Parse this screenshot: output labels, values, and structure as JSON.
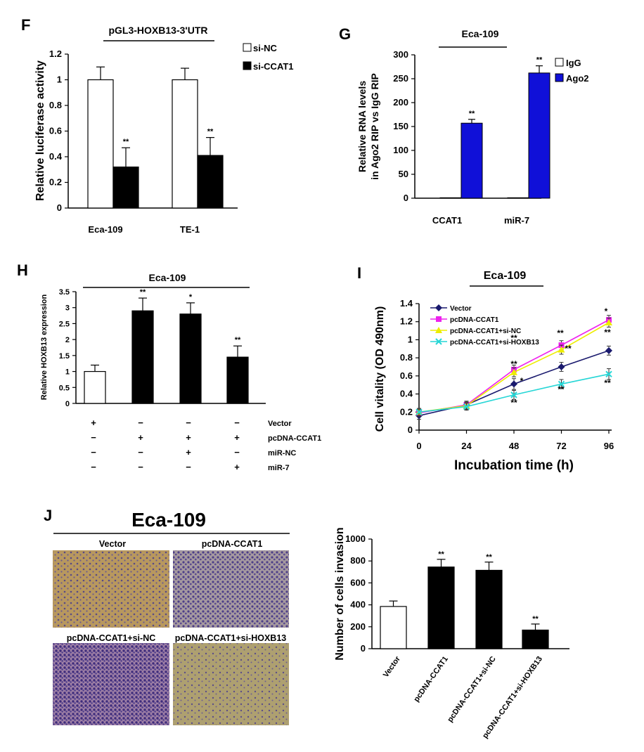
{
  "chart_data": [
    {
      "panel": "F",
      "type": "bar",
      "title": "pGL3-HOXB13-3'UTR",
      "ylabel": "Relative luciferase activity",
      "ylim": [
        0,
        1.2
      ],
      "yticks": [
        "0",
        "0.2",
        "0.4",
        "0.6",
        "0.8",
        "1",
        "1.2"
      ],
      "categories": [
        "Eca-109",
        "TE-1"
      ],
      "series": [
        {
          "name": "si-NC",
          "color": "#ffffff",
          "values": [
            1.0,
            1.0
          ],
          "errors": [
            0.1,
            0.09
          ],
          "marks": [
            "",
            ""
          ]
        },
        {
          "name": "si-CCAT1",
          "color": "#000000",
          "values": [
            0.32,
            0.41
          ],
          "errors": [
            0.15,
            0.14
          ],
          "marks": [
            "**",
            "**"
          ]
        }
      ]
    },
    {
      "panel": "G",
      "type": "bar",
      "title": "Eca-109",
      "ylabel_lines": [
        "Relative RNA levels",
        "in Ago2 RIP vs IgG RIP"
      ],
      "ylim": [
        0,
        300
      ],
      "yticks": [
        "0",
        "50",
        "100",
        "150",
        "200",
        "250",
        "300"
      ],
      "categories": [
        "CCAT1",
        "miR-7"
      ],
      "series": [
        {
          "name": "IgG",
          "color": "#ffffff",
          "values": [
            1,
            1
          ],
          "errors": [
            0,
            0
          ],
          "marks": [
            "",
            ""
          ]
        },
        {
          "name": "Ago2",
          "color": "#1010d8",
          "values": [
            157,
            262
          ],
          "errors": [
            8,
            15
          ],
          "marks": [
            "**",
            "**"
          ]
        }
      ]
    },
    {
      "panel": "H",
      "type": "bar",
      "title": "Eca-109",
      "ylabel": "Relative HOXB13 expression",
      "ylim": [
        0,
        3.5
      ],
      "yticks": [
        "0",
        "0.5",
        "1",
        "1.5",
        "2",
        "2.5",
        "3",
        "3.5"
      ],
      "values": [
        1.0,
        2.9,
        2.8,
        1.45
      ],
      "errors": [
        0.2,
        0.4,
        0.35,
        0.35
      ],
      "colors": [
        "#ffffff",
        "#000000",
        "#000000",
        "#000000"
      ],
      "marks": [
        "",
        "**",
        "*",
        "**"
      ],
      "conditions": [
        {
          "name": "Vector",
          "signs": [
            "+",
            "−",
            "−",
            "−"
          ]
        },
        {
          "name": "pcDNA-CCAT1",
          "signs": [
            "−",
            "+",
            "+",
            "+"
          ]
        },
        {
          "name": "miR-NC",
          "signs": [
            "−",
            "−",
            "+",
            "−"
          ]
        },
        {
          "name": "miR-7",
          "signs": [
            "−",
            "−",
            "−",
            "+"
          ]
        }
      ]
    },
    {
      "panel": "I",
      "type": "line",
      "title": "Eca-109",
      "xlabel": "Incubation time (h)",
      "ylabel": "Cell vitality (OD 490nm)",
      "x": [
        0,
        24,
        48,
        72,
        96
      ],
      "xticks": [
        "0",
        "24",
        "48",
        "72",
        "96"
      ],
      "ylim": [
        0,
        1.4
      ],
      "yticks": [
        "0",
        "0.2",
        "0.4",
        "0.6",
        "0.8",
        "1",
        "1.2",
        "1.4"
      ],
      "series": [
        {
          "name": "Vector",
          "color": "#1a1a6e",
          "marker": "diamond",
          "values": [
            0.16,
            0.28,
            0.51,
            0.7,
            0.88
          ],
          "errors": [
            0.04,
            0.04,
            0.06,
            0.05,
            0.05
          ]
        },
        {
          "name": "pcDNA-CCAT1",
          "color": "#ee22ee",
          "marker": "square",
          "values": [
            0.19,
            0.28,
            0.67,
            0.94,
            1.22
          ],
          "errors": [
            0.04,
            0.04,
            0.05,
            0.05,
            0.05
          ]
        },
        {
          "name": "pcDNA-CCAT1+si-NC",
          "color": "#eded00",
          "marker": "triangle",
          "values": [
            0.2,
            0.27,
            0.64,
            0.89,
            1.19
          ],
          "errors": [
            0.04,
            0.04,
            0.05,
            0.05,
            0.05
          ]
        },
        {
          "name": "pcDNA-CCAT1+si-HOXB13",
          "color": "#26d6d6",
          "marker": "x",
          "values": [
            0.2,
            0.26,
            0.39,
            0.51,
            0.62
          ],
          "errors": [
            0.04,
            0.04,
            0.05,
            0.05,
            0.06
          ]
        }
      ],
      "annotations": [
        "**",
        "*",
        "**",
        "**",
        "**",
        "**",
        "*",
        "**",
        "**",
        "**"
      ]
    },
    {
      "panel": "J",
      "type": "bar",
      "ylabel": "Number of cells invasion",
      "ylim": [
        0,
        1000
      ],
      "yticks": [
        "0",
        "200",
        "400",
        "600",
        "800",
        "1000"
      ],
      "categories": [
        "Vector",
        "pcDNA-CCAT1",
        "pcDNA-CCAT1+si-NC",
        "pcDNA-CCAT1+si-HOXB13"
      ],
      "values": [
        385,
        745,
        715,
        170
      ],
      "errors": [
        50,
        70,
        75,
        55
      ],
      "colors": [
        "#ffffff",
        "#000000",
        "#000000",
        "#000000"
      ],
      "marks": [
        "",
        "**",
        "**",
        "**"
      ]
    }
  ],
  "micrographs": {
    "title": "Eca-109",
    "labels": [
      "Vector",
      "pcDNA-CCAT1",
      "pcDNA-CCAT1+si-NC",
      "pcDNA-CCAT1+si-HOXB13"
    ]
  }
}
